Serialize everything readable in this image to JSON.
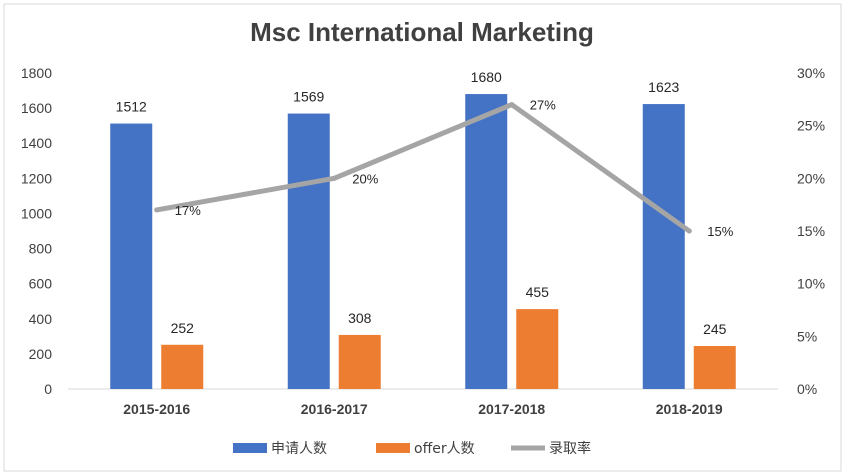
{
  "chart_data": {
    "type": "bar",
    "title": "Msc International Marketing",
    "categories": [
      "2015-2016",
      "2016-2017",
      "2017-2018",
      "2018-2019"
    ],
    "series": [
      {
        "name": "申请人数",
        "type": "bar",
        "axis": "left",
        "values": [
          1512,
          1569,
          1680,
          1623
        ],
        "color": "#4472c4"
      },
      {
        "name": "offer人数",
        "type": "bar",
        "axis": "left",
        "values": [
          252,
          308,
          455,
          245
        ],
        "color": "#ed7d31"
      },
      {
        "name": "录取率",
        "type": "line",
        "axis": "right",
        "values": [
          17,
          20,
          27,
          15
        ],
        "labels": [
          "17%",
          "20%",
          "27%",
          "15%"
        ],
        "color": "#a5a5a5"
      }
    ],
    "ylim": [
      0,
      1800
    ],
    "y_ticks": [
      "0",
      "200",
      "400",
      "600",
      "800",
      "1000",
      "1200",
      "1400",
      "1600",
      "1800"
    ],
    "y2lim": [
      0,
      30
    ],
    "y2_ticks": [
      "0%",
      "5%",
      "10%",
      "15%",
      "20%",
      "25%",
      "30%"
    ],
    "grid": false,
    "legend_position": "bottom"
  }
}
